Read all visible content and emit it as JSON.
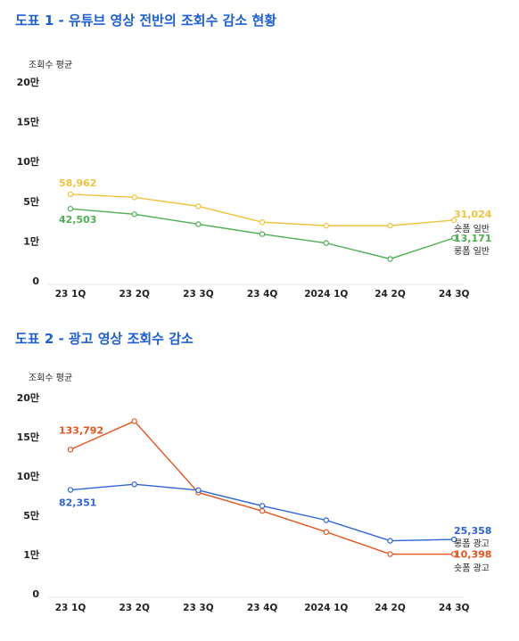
{
  "charts": [
    {
      "title": "도표 1 - 유튜브 영상 전반의 조회수 감소 현황",
      "chart_data": {
        "type": "line",
        "ylabel": "조회수 평균",
        "categories": [
          "23 1Q",
          "23 2Q",
          "23 3Q",
          "23 4Q",
          "2024 1Q",
          "24 2Q",
          "24 3Q"
        ],
        "y_ticks": [
          {
            "value": 0,
            "label": "0"
          },
          {
            "value": 10000,
            "label": "1만"
          },
          {
            "value": 50000,
            "label": "5만"
          },
          {
            "value": 100000,
            "label": "10만"
          },
          {
            "value": 150000,
            "label": "15만"
          },
          {
            "value": 200000,
            "label": "20만"
          }
        ],
        "ylim": [
          0,
          200000
        ],
        "grid": false,
        "series": [
          {
            "name": "숏폼 일반",
            "color": "#f0c23b",
            "values": [
              58962,
              55000,
              45000,
              29000,
              25500,
              25500,
              31024
            ],
            "start_label": "58,962",
            "end_label": "31,024"
          },
          {
            "name": "롱폼 일반",
            "color": "#4caf50",
            "values": [
              42503,
              37000,
              27000,
              17000,
              9500,
              5500,
              13171
            ],
            "start_label": "42,503",
            "end_label": "13,171"
          }
        ]
      }
    },
    {
      "title": "도표 2 - 광고 영상 조회수 감소",
      "chart_data": {
        "type": "line",
        "ylabel": "조회수 평균",
        "categories": [
          "23 1Q",
          "23 2Q",
          "23 3Q",
          "23 4Q",
          "2024 1Q",
          "24 2Q",
          "24 3Q"
        ],
        "y_ticks": [
          {
            "value": 0,
            "label": "0"
          },
          {
            "value": 10000,
            "label": "1만"
          },
          {
            "value": 50000,
            "label": "5만"
          },
          {
            "value": 100000,
            "label": "10만"
          },
          {
            "value": 150000,
            "label": "15만"
          },
          {
            "value": 200000,
            "label": "20만"
          }
        ],
        "ylim": [
          0,
          200000
        ],
        "grid": false,
        "series": [
          {
            "name": "숏폼 광고",
            "color": "#e8531c",
            "values": [
              133792,
              170000,
              79000,
              55500,
              33000,
              10398,
              10398
            ],
            "start_label": "133,792",
            "end_label": "10,398"
          },
          {
            "name": "롱폼 광고",
            "color": "#2c64d6",
            "values": [
              82351,
              89500,
              82000,
              62000,
              45000,
              24000,
              25358
            ],
            "start_label": "82,351",
            "end_label": "25,358"
          }
        ]
      }
    }
  ]
}
